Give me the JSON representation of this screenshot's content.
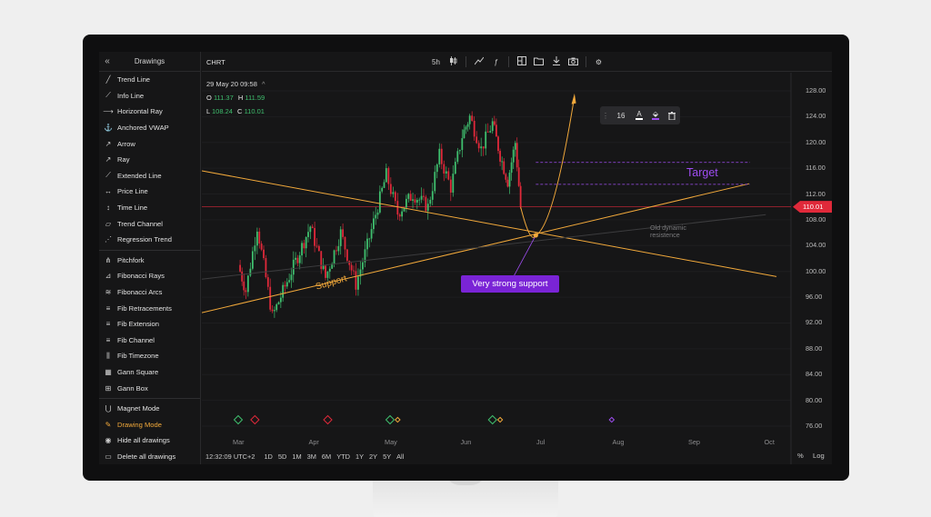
{
  "sidebar": {
    "collapse_icon": "double-chevron-left-icon",
    "title": "Drawings",
    "items_group1": [
      {
        "label": "Trend Line",
        "icon": "trend-line-icon"
      },
      {
        "label": "Info Line",
        "icon": "info-line-icon"
      },
      {
        "label": "Horizontal Ray",
        "icon": "horizontal-ray-icon"
      },
      {
        "label": "Anchored VWAP",
        "icon": "anchored-vwap-icon"
      },
      {
        "label": "Arrow",
        "icon": "arrow-icon"
      },
      {
        "label": "Ray",
        "icon": "ray-icon"
      },
      {
        "label": "Extended Line",
        "icon": "extended-line-icon"
      },
      {
        "label": "Price Line",
        "icon": "price-line-icon"
      },
      {
        "label": "Time Line",
        "icon": "time-line-icon"
      },
      {
        "label": "Trend Channel",
        "icon": "trend-channel-icon"
      },
      {
        "label": "Regression Trend",
        "icon": "regression-trend-icon"
      }
    ],
    "items_group2": [
      {
        "label": "Pitchfork",
        "icon": "pitchfork-icon"
      },
      {
        "label": "Fibonacci Rays",
        "icon": "fibonacci-rays-icon"
      },
      {
        "label": "Fibonacci Arcs",
        "icon": "fibonacci-arcs-icon"
      },
      {
        "label": "Fib Retracements",
        "icon": "fib-retracements-icon"
      },
      {
        "label": "Fib Extension",
        "icon": "fib-extension-icon"
      },
      {
        "label": "Fib Channel",
        "icon": "fib-channel-icon"
      },
      {
        "label": "Fib Timezone",
        "icon": "fib-timezone-icon"
      },
      {
        "label": "Gann Square",
        "icon": "gann-square-icon"
      },
      {
        "label": "Gann Box",
        "icon": "gann-box-icon"
      }
    ],
    "items_group3": [
      {
        "label": "Magnet Mode",
        "icon": "magnet-icon"
      },
      {
        "label": "Drawing Mode",
        "icon": "drawing-mode-icon",
        "active": true
      },
      {
        "label": "Hide all drawings",
        "icon": "eye-icon"
      },
      {
        "label": "Delete all drawings",
        "icon": "trash-icon"
      }
    ]
  },
  "topbar": {
    "symbol": "CHRT",
    "interval": "5h",
    "tool_icons": [
      "line-type-icon",
      "function-icon",
      "layout-icon",
      "image-icon",
      "folder-icon",
      "download-icon",
      "camera-icon",
      "settings-icon"
    ]
  },
  "ohlc": {
    "datetime": "29 May 20  09:58",
    "caret": "^",
    "o_label": "O",
    "o": "111.37",
    "h_label": "H",
    "h": "111.59",
    "l_label": "L",
    "l": "108.24",
    "c_label": "C",
    "c": "110.01"
  },
  "text_toolbar": {
    "font_size": "16",
    "icons": [
      "text-color-icon",
      "fill-icon",
      "trash-icon"
    ]
  },
  "annotations": {
    "target": "Target",
    "support": "Support",
    "very_strong_support": "Very strong support",
    "old_dynamic": "Old dynamic",
    "resistance": "resistence"
  },
  "colors": {
    "accent": "#f2a93b",
    "purple": "#9f4df2",
    "badge": "#7a24d6",
    "up": "#3fbf6e",
    "down": "#e0293a",
    "price_line": "#e0293a"
  },
  "price_axis": {
    "labels": [
      "128.00",
      "124.00",
      "120.00",
      "116.00",
      "112.00",
      "108.00",
      "104.00",
      "100.00",
      "96.00",
      "92.00",
      "88.00",
      "84.00",
      "80.00",
      "76.00"
    ],
    "current": "110.01"
  },
  "time_axis": {
    "labels": [
      "Mar",
      "Apr",
      "May",
      "Jun",
      "Jul",
      "Aug",
      "Sep",
      "Oct"
    ]
  },
  "bottom_bar": {
    "time": "12:32:09 UTC+2",
    "ranges": [
      "1D",
      "5D",
      "1M",
      "3M",
      "6M",
      "YTD",
      "1Y",
      "2Y",
      "5Y",
      "All"
    ],
    "percent": "%",
    "log": "Log"
  },
  "chart_data": {
    "type": "candlestick",
    "symbol": "CHRT",
    "ylim": [
      76,
      128
    ],
    "x_labels": [
      "Mar",
      "Apr",
      "May",
      "Jun",
      "Jul",
      "Aug",
      "Sep",
      "Oct"
    ],
    "current_price": 110.01,
    "swing_points": [
      {
        "month": 0.0,
        "price": 101
      },
      {
        "month": 0.1,
        "price": 97
      },
      {
        "month": 0.25,
        "price": 107
      },
      {
        "month": 0.45,
        "price": 93
      },
      {
        "month": 0.7,
        "price": 100
      },
      {
        "month": 0.95,
        "price": 107
      },
      {
        "month": 1.15,
        "price": 99
      },
      {
        "month": 1.35,
        "price": 106
      },
      {
        "month": 1.55,
        "price": 98
      },
      {
        "month": 1.7,
        "price": 104
      },
      {
        "month": 1.95,
        "price": 115
      },
      {
        "month": 2.1,
        "price": 109
      },
      {
        "month": 2.3,
        "price": 112
      },
      {
        "month": 2.5,
        "price": 110
      },
      {
        "month": 2.65,
        "price": 118
      },
      {
        "month": 2.8,
        "price": 113
      },
      {
        "month": 2.95,
        "price": 121
      },
      {
        "month": 3.05,
        "price": 124
      },
      {
        "month": 3.2,
        "price": 119
      },
      {
        "month": 3.35,
        "price": 123
      },
      {
        "month": 3.45,
        "price": 118
      },
      {
        "month": 3.55,
        "price": 114
      },
      {
        "month": 3.65,
        "price": 120
      },
      {
        "month": 3.72,
        "price": 110
      }
    ]
  }
}
